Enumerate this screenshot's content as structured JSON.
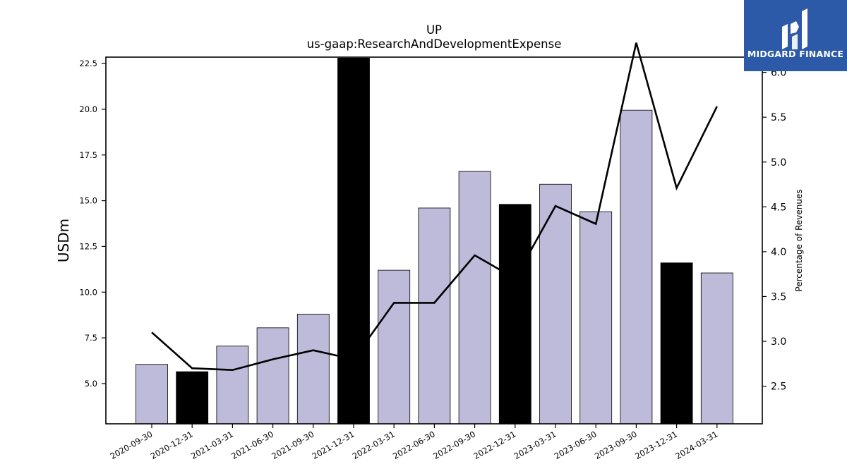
{
  "chart_data": {
    "type": "bar",
    "title": "UP",
    "subtitle": "us-gaap:ResearchAndDevelopmentExpense",
    "ylabel": "USDm",
    "y2label": "Percentage of Revenues",
    "categories": [
      "2020-09-30",
      "2020-12-31",
      "2021-03-31",
      "2021-06-30",
      "2021-09-30",
      "2021-12-31",
      "2022-03-31",
      "2022-06-30",
      "2022-09-30",
      "2022-12-31",
      "2023-03-31",
      "2023-06-30",
      "2023-09-30",
      "2023-12-31",
      "2024-03-31"
    ],
    "series": [
      {
        "type": "bar",
        "axis": "left",
        "values": [
          6.05,
          5.65,
          7.05,
          8.05,
          8.8,
          22.8,
          11.2,
          14.6,
          16.6,
          14.8,
          15.9,
          14.4,
          19.95,
          11.6,
          11.05
        ]
      },
      {
        "type": "line",
        "axis": "right",
        "values": [
          3.1,
          2.7,
          2.68,
          2.8,
          2.9,
          2.8,
          3.43,
          3.43,
          3.96,
          3.7,
          4.51,
          4.31,
          6.33,
          4.71,
          5.62
        ]
      }
    ],
    "bar_colors": [
      "#bebad9",
      "#000000",
      "#bebad9",
      "#bebad9",
      "#bebad9",
      "#000000",
      "#bebad9",
      "#bebad9",
      "#bebad9",
      "#000000",
      "#bebad9",
      "#bebad9",
      "#bebad9",
      "#000000",
      "#bebad9"
    ],
    "ylim": [
      2.8,
      22.85
    ],
    "y2lim": [
      2.08,
      6.17
    ],
    "yticks": [
      "5.0",
      "7.5",
      "10.0",
      "12.5",
      "15.0",
      "17.5",
      "20.0",
      "22.5"
    ],
    "y2ticks": [
      "2.5",
      "3.0",
      "3.5",
      "4.0",
      "4.5",
      "5.0",
      "5.5",
      "6.0"
    ],
    "grid": false
  },
  "logo": {
    "text": "MIDGARD FINANCE",
    "color": "#2c5aa8"
  }
}
